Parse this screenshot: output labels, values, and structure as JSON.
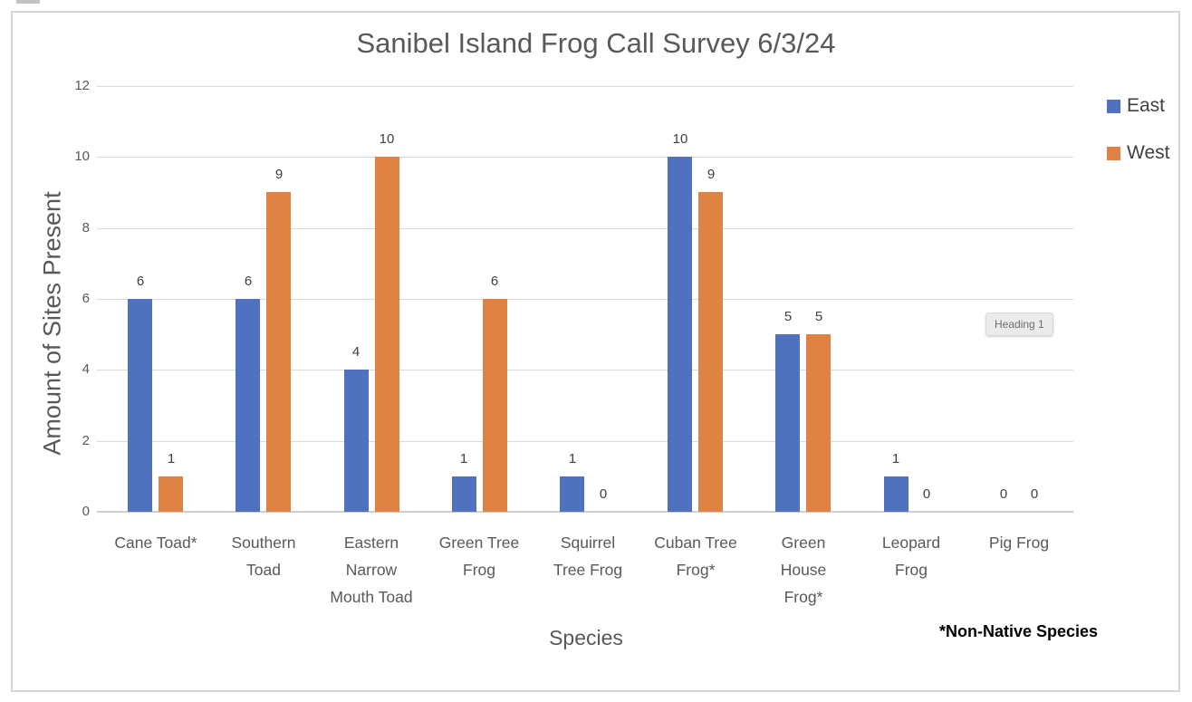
{
  "chart_data": {
    "type": "bar",
    "title": "Sanibel Island Frog Call Survey 6/3/24",
    "xlabel": "Species",
    "ylabel": "Amount of Sites Present",
    "ylim": [
      0,
      12
    ],
    "yticks": [
      0,
      2,
      4,
      6,
      8,
      10,
      12
    ],
    "grid": true,
    "data_labels": true,
    "legend_position": "top-right",
    "categories": [
      "Cane Toad*",
      "Southern Toad",
      "Eastern Narrow Mouth Toad",
      "Green Tree Frog",
      "Squirrel Tree Frog",
      "Cuban Tree Frog*",
      "Green House Frog*",
      "Leopard Frog",
      "Pig Frog"
    ],
    "series": [
      {
        "name": "East",
        "color": "#4F71BE",
        "values": [
          6,
          6,
          4,
          1,
          1,
          10,
          5,
          1,
          0
        ]
      },
      {
        "name": "West",
        "color": "#DE8344",
        "values": [
          1,
          9,
          10,
          6,
          0,
          9,
          5,
          0,
          0
        ]
      }
    ]
  },
  "annotations": {
    "footnote": "*Non-Native Species",
    "style_tooltip": "Heading 1"
  },
  "colors": {
    "east_series": "#4F71BE",
    "west_series": "#DE8344",
    "gridline": "#d9d9d9",
    "axis_line": "#cfcfcf",
    "title_text": "#595959",
    "axis_text": "#595959",
    "data_label_text": "#404040",
    "legend_text": "#404040",
    "page_border": "#d6d6d6",
    "tooltip_background": "#ebebeb",
    "tooltip_text": "#6e6e6e"
  }
}
